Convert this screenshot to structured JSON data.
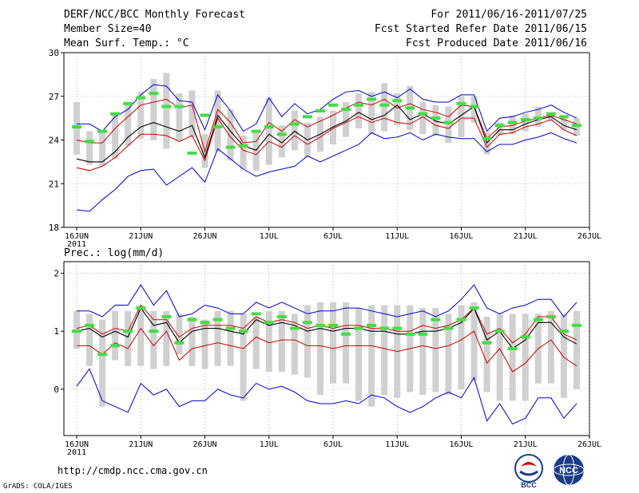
{
  "header": {
    "title": "DERF/NCC/BCC Monthly Forecast",
    "member_size": "Member Size=40",
    "variable1": "Mean Surf. Temp.: °C",
    "period": "For 2011/06/16-2011/07/25",
    "refer_date": "Fcst Started Refer Date 2011/06/15",
    "produced_date": "Fcst Produced Date 2011/06/16"
  },
  "footer": {
    "url": "http://cmdp.ncc.cma.gov.cn",
    "grads": "GrADS: COLA/IGES",
    "logo1_text": "BCC",
    "logo2_text": "NCC"
  },
  "colors": {
    "box": "#d0d0d0",
    "ens_max_min": "#0000cc",
    "ens_spread": "#cc0000",
    "ens_mean": "#000000",
    "mode_marker": "#44dd44",
    "axis": "#000000"
  },
  "chart_data": [
    {
      "type": "line",
      "title": "Mean Surf. Temp.: °C",
      "ylim": [
        18,
        30
      ],
      "yticks": [
        18,
        21,
        24,
        27,
        30
      ],
      "x_tick_labels": [
        "16JUN",
        "21JUN",
        "26JUN",
        "1JUL",
        "6JUL",
        "11JUL",
        "16JUL",
        "21JUL",
        "26JUL"
      ],
      "x_year_label": "2011",
      "days": [
        0,
        1,
        2,
        3,
        4,
        5,
        6,
        7,
        8,
        9,
        10,
        11,
        12,
        13,
        14,
        15,
        16,
        17,
        18,
        19,
        20,
        21,
        22,
        23,
        24,
        25,
        26,
        27,
        28,
        29,
        30,
        31,
        32,
        33,
        34,
        35,
        36,
        37,
        38,
        39
      ],
      "box_low": [
        23.0,
        22.3,
        22.2,
        22.7,
        23.6,
        24.1,
        24.0,
        23.4,
        23.9,
        24.2,
        22.1,
        23.2,
        22.6,
        22.0,
        21.9,
        22.3,
        22.8,
        23.3,
        22.8,
        23.2,
        23.7,
        24.2,
        24.8,
        24.4,
        24.6,
        25.0,
        24.7,
        24.4,
        24.3,
        23.8,
        24.2,
        25.2,
        23.0,
        24.3,
        24.4,
        24.6,
        24.9,
        25.3,
        24.7,
        24.3
      ],
      "box_high": [
        26.6,
        24.6,
        24.6,
        25.8,
        26.6,
        27.3,
        28.2,
        28.6,
        27.2,
        27.4,
        24.4,
        27.4,
        26.1,
        24.3,
        24.6,
        26.9,
        25.0,
        26.0,
        25.2,
        25.6,
        26.0,
        26.6,
        27.2,
        27.3,
        27.9,
        27.2,
        27.7,
        26.6,
        26.4,
        26.3,
        27.0,
        27.0,
        24.5,
        25.2,
        25.7,
        25.8,
        26.3,
        25.9,
        25.6,
        25.5
      ],
      "series": [
        {
          "name": "max",
          "values": [
            25.1,
            25.1,
            24.6,
            25.6,
            26.1,
            27.1,
            27.8,
            27.7,
            26.7,
            26.6,
            24.7,
            27.1,
            26.0,
            24.6,
            25.1,
            26.9,
            25.6,
            26.5,
            25.8,
            26.1,
            26.8,
            27.3,
            27.4,
            27.0,
            27.3,
            26.9,
            27.5,
            26.8,
            26.6,
            26.6,
            27.1,
            27.1,
            24.6,
            25.5,
            25.6,
            25.9,
            26.1,
            26.4,
            25.9,
            25.5
          ]
        },
        {
          "name": "hi",
          "values": [
            24.0,
            23.8,
            23.8,
            24.8,
            25.6,
            26.4,
            26.6,
            26.8,
            26.2,
            26.4,
            23.2,
            26.1,
            25.2,
            23.8,
            23.9,
            25.2,
            24.6,
            25.4,
            24.9,
            25.3,
            25.7,
            26.2,
            26.6,
            26.4,
            26.8,
            26.2,
            26.5,
            26.1,
            25.9,
            25.6,
            26.4,
            26.3,
            24.1,
            24.9,
            25.0,
            25.3,
            25.5,
            25.7,
            25.4,
            25.1
          ]
        },
        {
          "name": "mean",
          "values": [
            22.7,
            22.5,
            22.5,
            23.2,
            24.2,
            24.9,
            25.2,
            24.9,
            24.6,
            25.0,
            22.8,
            25.7,
            24.6,
            23.6,
            23.3,
            24.4,
            23.8,
            24.6,
            24.0,
            24.4,
            24.9,
            25.3,
            25.9,
            25.4,
            25.7,
            26.4,
            25.4,
            25.8,
            25.3,
            25.1,
            25.7,
            26.3,
            23.8,
            24.7,
            24.7,
            25.1,
            25.4,
            25.6,
            25.0,
            24.7
          ]
        },
        {
          "name": "lo",
          "values": [
            22.1,
            21.9,
            22.2,
            22.8,
            23.6,
            24.4,
            24.4,
            24.3,
            23.9,
            24.3,
            22.6,
            25.5,
            24.2,
            23.3,
            23.0,
            23.9,
            23.5,
            24.3,
            23.7,
            24.2,
            24.8,
            25.2,
            25.6,
            25.2,
            25.5,
            25.2,
            25.1,
            25.6,
            25.0,
            24.8,
            25.5,
            25.5,
            23.5,
            24.4,
            24.5,
            24.9,
            25.1,
            25.4,
            24.7,
            24.3
          ]
        },
        {
          "name": "min",
          "values": [
            19.2,
            19.1,
            19.9,
            20.6,
            21.5,
            21.9,
            22.0,
            20.9,
            21.5,
            22.1,
            21.1,
            23.4,
            22.7,
            22.0,
            21.5,
            21.8,
            22.0,
            22.2,
            22.9,
            22.5,
            22.9,
            23.3,
            23.7,
            24.5,
            24.1,
            24.2,
            24.5,
            24.0,
            24.4,
            24.2,
            24.1,
            24.1,
            23.2,
            23.7,
            23.7,
            24.0,
            24.2,
            24.5,
            24.1,
            23.8
          ]
        },
        {
          "name": "mode",
          "values": [
            24.9,
            23.9,
            24.6,
            25.8,
            26.5,
            26.9,
            27.2,
            26.3,
            26.3,
            23.1,
            25.7,
            24.9,
            23.5,
            23.6,
            24.6,
            24.9,
            24.4,
            25.1,
            25.6,
            26.0,
            26.4,
            26.1,
            26.4,
            26.8,
            26.4,
            26.7,
            26.2,
            25.8,
            25.5,
            25.2,
            26.5,
            26.3,
            24.1,
            25.0,
            25.2,
            25.4,
            25.5,
            25.8,
            25.6,
            25.0
          ]
        }
      ]
    },
    {
      "type": "line",
      "title": "Prec.: log(mm/d)",
      "ylim": [
        -0.8,
        2.2
      ],
      "yticks": [
        0,
        1,
        2
      ],
      "x_tick_labels": [
        "16JUN",
        "21JUN",
        "26JUN",
        "1JUL",
        "6JUL",
        "11JUL",
        "16JUL",
        "21JUL",
        "26JUL"
      ],
      "x_year_label": "2011",
      "days": [
        0,
        1,
        2,
        3,
        4,
        5,
        6,
        7,
        8,
        9,
        10,
        11,
        12,
        13,
        14,
        15,
        16,
        17,
        18,
        19,
        20,
        21,
        22,
        23,
        24,
        25,
        26,
        27,
        28,
        29,
        30,
        31,
        32,
        33,
        34,
        35,
        36,
        37,
        38,
        39
      ],
      "box_low": [
        0.7,
        0.4,
        -0.3,
        0.5,
        0.4,
        0.4,
        0.35,
        0.4,
        0.6,
        0.4,
        0.35,
        0.4,
        0.4,
        -0.2,
        0.35,
        0.3,
        0.3,
        0.25,
        0.2,
        -0.1,
        0.1,
        0.1,
        -0.2,
        -0.3,
        -0.1,
        -0.15,
        -0.05,
        -0.1,
        -0.05,
        -0.1,
        0.0,
        0.15,
        -0.05,
        -0.2,
        -0.2,
        -0.2,
        0.1,
        0.1,
        -0.15,
        0.0
      ],
      "box_high": [
        1.35,
        1.3,
        1.2,
        1.35,
        1.35,
        1.45,
        1.35,
        1.35,
        1.3,
        1.25,
        1.2,
        1.35,
        1.35,
        1.3,
        1.25,
        1.35,
        1.35,
        1.3,
        1.45,
        1.5,
        1.5,
        1.5,
        1.4,
        1.45,
        1.45,
        1.45,
        1.45,
        1.4,
        1.4,
        1.3,
        1.45,
        1.5,
        1.25,
        1.3,
        1.3,
        1.3,
        1.3,
        1.35,
        1.3,
        1.35
      ],
      "series": [
        {
          "name": "max",
          "values": [
            1.35,
            1.35,
            1.25,
            1.45,
            1.45,
            1.8,
            1.45,
            1.7,
            1.25,
            1.3,
            1.45,
            1.4,
            1.3,
            1.3,
            1.5,
            1.4,
            1.5,
            1.4,
            1.3,
            1.35,
            1.35,
            1.4,
            1.4,
            1.35,
            1.3,
            1.25,
            1.3,
            1.35,
            1.25,
            1.35,
            1.55,
            1.8,
            1.4,
            1.3,
            1.4,
            1.45,
            1.55,
            1.55,
            1.25,
            1.5
          ]
        },
        {
          "name": "hi",
          "values": [
            1.05,
            1.1,
            0.95,
            1.05,
            1.0,
            1.45,
            1.2,
            1.2,
            0.9,
            1.05,
            1.1,
            1.1,
            1.1,
            1.05,
            1.25,
            1.15,
            1.2,
            1.15,
            1.05,
            1.1,
            1.05,
            1.1,
            1.1,
            1.05,
            1.05,
            1.0,
            1.0,
            1.1,
            1.05,
            1.1,
            1.2,
            1.4,
            0.95,
            1.05,
            0.8,
            0.95,
            1.25,
            1.25,
            0.95,
            0.85
          ]
        },
        {
          "name": "mean",
          "values": [
            1.0,
            1.05,
            0.9,
            1.0,
            0.9,
            1.4,
            1.1,
            1.15,
            0.8,
            1.0,
            1.05,
            1.05,
            1.0,
            0.95,
            1.2,
            1.1,
            1.15,
            1.1,
            1.0,
            1.05,
            1.0,
            1.05,
            1.05,
            1.0,
            1.0,
            0.95,
            0.95,
            1.0,
            1.0,
            1.05,
            1.15,
            1.4,
            0.85,
            1.0,
            0.7,
            0.85,
            1.15,
            1.15,
            0.9,
            0.78
          ]
        },
        {
          "name": "lo",
          "values": [
            0.75,
            0.75,
            0.6,
            0.8,
            0.7,
            1.05,
            0.75,
            1.0,
            0.5,
            0.7,
            0.75,
            0.8,
            0.75,
            0.7,
            0.9,
            0.8,
            0.85,
            0.85,
            0.75,
            0.75,
            0.7,
            0.75,
            0.75,
            0.75,
            0.7,
            0.65,
            0.7,
            0.75,
            0.7,
            0.75,
            0.85,
            1.0,
            0.45,
            0.7,
            0.3,
            0.45,
            0.7,
            0.85,
            0.55,
            0.4
          ]
        },
        {
          "name": "min",
          "values": [
            0.05,
            0.35,
            -0.2,
            -0.3,
            -0.4,
            0.1,
            -0.1,
            0.0,
            -0.3,
            -0.2,
            -0.2,
            0.0,
            -0.1,
            -0.15,
            0.1,
            0.0,
            0.05,
            -0.05,
            -0.2,
            -0.25,
            -0.25,
            -0.2,
            -0.25,
            -0.1,
            -0.15,
            -0.3,
            -0.4,
            -0.3,
            -0.15,
            -0.05,
            -0.15,
            0.2,
            -0.55,
            -0.25,
            -0.6,
            -0.5,
            -0.15,
            -0.15,
            -0.5,
            -0.25
          ]
        },
        {
          "name": "mode",
          "values": [
            1.0,
            1.1,
            0.6,
            0.75,
            1.0,
            1.4,
            1.0,
            1.25,
            0.8,
            1.2,
            1.15,
            1.2,
            1.05,
            1.0,
            1.3,
            1.15,
            1.25,
            1.05,
            1.15,
            1.1,
            1.1,
            0.95,
            1.05,
            1.1,
            1.05,
            1.05,
            0.95,
            0.95,
            1.2,
            1.05,
            1.2,
            1.4,
            0.8,
            1.0,
            0.7,
            0.9,
            1.2,
            1.25,
            1.0,
            1.1
          ]
        }
      ]
    }
  ]
}
